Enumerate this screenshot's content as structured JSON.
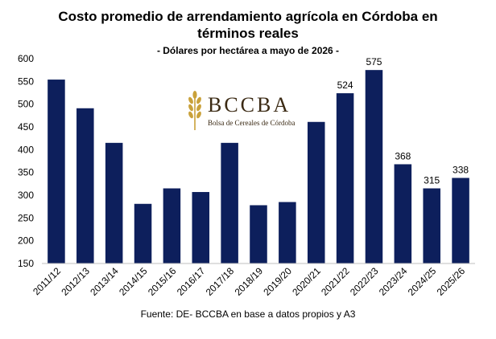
{
  "chart_data": {
    "type": "bar",
    "title": "Costo promedio de arrendamiento agrícola en Córdoba en términos reales",
    "title_line1": "Costo promedio de arrendamiento agrícola en Córdoba en",
    "title_line2": "términos reales",
    "subtitle": "- Dólares por hectárea a mayo de 2026 -",
    "categories": [
      "2011/12",
      "2012/13",
      "2013/14",
      "2014/15",
      "2015/16",
      "2016/17",
      "2017/18",
      "2018/19",
      "2019/20",
      "2020/21",
      "2021/22",
      "2022/23",
      "2023/24",
      "2024/25",
      "2025/26"
    ],
    "values": [
      554,
      491,
      415,
      281,
      315,
      307,
      415,
      278,
      285,
      461,
      524,
      575,
      368,
      315,
      338
    ],
    "data_labels": [
      null,
      null,
      null,
      null,
      null,
      null,
      null,
      null,
      null,
      null,
      "524",
      "575",
      "368",
      "315",
      "338"
    ],
    "ylim": [
      150,
      600
    ],
    "yticks": [
      150,
      200,
      250,
      300,
      350,
      400,
      450,
      500,
      550,
      600
    ],
    "bar_color": "#0d1f5c",
    "xlabel": "",
    "ylabel": "",
    "source": "Fuente: DE- BCCBA en base a datos propios y A3"
  },
  "logo": {
    "name": "BCCBA",
    "subtitle": "Bolsa de Cereales de Córdoba",
    "color": "#c9a13a"
  }
}
